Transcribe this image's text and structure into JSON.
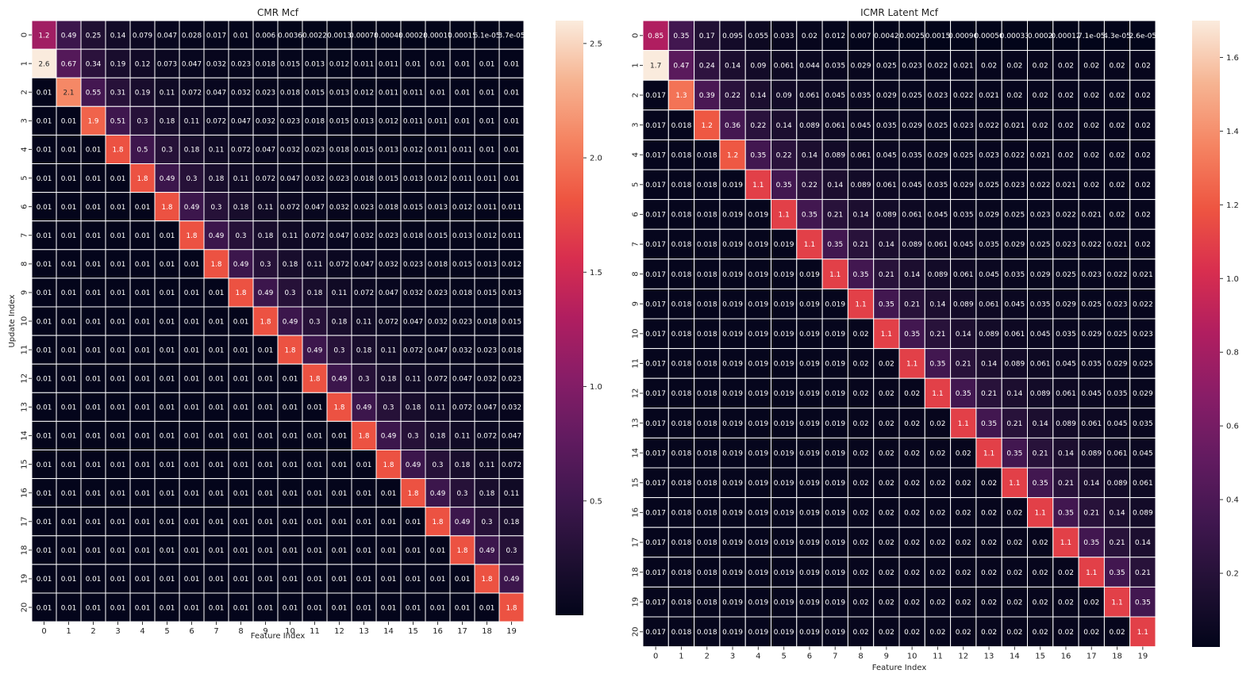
{
  "chart_data": [
    {
      "type": "heatmap",
      "title": "CMR Mcf",
      "xlabel": "Feature Index",
      "ylabel": "Update Index",
      "x_categories": [
        "0",
        "1",
        "2",
        "3",
        "4",
        "5",
        "6",
        "7",
        "8",
        "9",
        "10",
        "11",
        "12",
        "13",
        "14",
        "15",
        "16",
        "17",
        "18",
        "19"
      ],
      "y_categories": [
        "0",
        "1",
        "2",
        "3",
        "4",
        "5",
        "6",
        "7",
        "8",
        "9",
        "10",
        "11",
        "12",
        "13",
        "14",
        "15",
        "16",
        "17",
        "18",
        "19",
        "20"
      ],
      "colorbar": {
        "min": 0,
        "max": 2.6,
        "ticks": [
          "0.5",
          "1.0",
          "1.5",
          "2.0",
          "2.5"
        ]
      },
      "colormap": "rocket",
      "grid_line_color": "#ffffff",
      "values": [
        [
          "1.2",
          "0.49",
          "0.25",
          "0.14",
          "0.079",
          "0.047",
          "0.028",
          "0.017",
          "0.01",
          "0.006",
          "0.0036",
          "0.0022",
          "0.0013",
          "0.00078",
          "0.00048",
          "0.00028",
          "0.00017",
          "0.00015",
          "6.1e-05",
          "3.7e-05"
        ],
        [
          "2.6",
          "0.67",
          "0.34",
          "0.19",
          "0.12",
          "0.073",
          "0.047",
          "0.032",
          "0.023",
          "0.018",
          "0.015",
          "0.013",
          "0.012",
          "0.011",
          "0.011",
          "0.01",
          "0.01",
          "0.01",
          "0.01",
          "0.01"
        ],
        [
          "0.01",
          "2.1",
          "0.55",
          "0.31",
          "0.19",
          "0.11",
          "0.072",
          "0.047",
          "0.032",
          "0.023",
          "0.018",
          "0.015",
          "0.013",
          "0.012",
          "0.011",
          "0.011",
          "0.01",
          "0.01",
          "0.01",
          "0.01"
        ],
        [
          "0.01",
          "0.01",
          "1.9",
          "0.51",
          "0.3",
          "0.18",
          "0.11",
          "0.072",
          "0.047",
          "0.032",
          "0.023",
          "0.018",
          "0.015",
          "0.013",
          "0.012",
          "0.011",
          "0.011",
          "0.01",
          "0.01",
          "0.01"
        ],
        [
          "0.01",
          "0.01",
          "0.01",
          "1.8",
          "0.5",
          "0.3",
          "0.18",
          "0.11",
          "0.072",
          "0.047",
          "0.032",
          "0.023",
          "0.018",
          "0.015",
          "0.013",
          "0.012",
          "0.011",
          "0.011",
          "0.01",
          "0.01"
        ],
        [
          "0.01",
          "0.01",
          "0.01",
          "0.01",
          "1.8",
          "0.49",
          "0.3",
          "0.18",
          "0.11",
          "0.072",
          "0.047",
          "0.032",
          "0.023",
          "0.018",
          "0.015",
          "0.013",
          "0.012",
          "0.011",
          "0.011",
          "0.01"
        ],
        [
          "0.01",
          "0.01",
          "0.01",
          "0.01",
          "0.01",
          "1.8",
          "0.49",
          "0.3",
          "0.18",
          "0.11",
          "0.072",
          "0.047",
          "0.032",
          "0.023",
          "0.018",
          "0.015",
          "0.013",
          "0.012",
          "0.011",
          "0.011"
        ],
        [
          "0.01",
          "0.01",
          "0.01",
          "0.01",
          "0.01",
          "0.01",
          "1.8",
          "0.49",
          "0.3",
          "0.18",
          "0.11",
          "0.072",
          "0.047",
          "0.032",
          "0.023",
          "0.018",
          "0.015",
          "0.013",
          "0.012",
          "0.011"
        ],
        [
          "0.01",
          "0.01",
          "0.01",
          "0.01",
          "0.01",
          "0.01",
          "0.01",
          "1.8",
          "0.49",
          "0.3",
          "0.18",
          "0.11",
          "0.072",
          "0.047",
          "0.032",
          "0.023",
          "0.018",
          "0.015",
          "0.013",
          "0.012"
        ],
        [
          "0.01",
          "0.01",
          "0.01",
          "0.01",
          "0.01",
          "0.01",
          "0.01",
          "0.01",
          "1.8",
          "0.49",
          "0.3",
          "0.18",
          "0.11",
          "0.072",
          "0.047",
          "0.032",
          "0.023",
          "0.018",
          "0.015",
          "0.013"
        ],
        [
          "0.01",
          "0.01",
          "0.01",
          "0.01",
          "0.01",
          "0.01",
          "0.01",
          "0.01",
          "0.01",
          "1.8",
          "0.49",
          "0.3",
          "0.18",
          "0.11",
          "0.072",
          "0.047",
          "0.032",
          "0.023",
          "0.018",
          "0.015"
        ],
        [
          "0.01",
          "0.01",
          "0.01",
          "0.01",
          "0.01",
          "0.01",
          "0.01",
          "0.01",
          "0.01",
          "0.01",
          "1.8",
          "0.49",
          "0.3",
          "0.18",
          "0.11",
          "0.072",
          "0.047",
          "0.032",
          "0.023",
          "0.018"
        ],
        [
          "0.01",
          "0.01",
          "0.01",
          "0.01",
          "0.01",
          "0.01",
          "0.01",
          "0.01",
          "0.01",
          "0.01",
          "0.01",
          "1.8",
          "0.49",
          "0.3",
          "0.18",
          "0.11",
          "0.072",
          "0.047",
          "0.032",
          "0.023"
        ],
        [
          "0.01",
          "0.01",
          "0.01",
          "0.01",
          "0.01",
          "0.01",
          "0.01",
          "0.01",
          "0.01",
          "0.01",
          "0.01",
          "0.01",
          "1.8",
          "0.49",
          "0.3",
          "0.18",
          "0.11",
          "0.072",
          "0.047",
          "0.032"
        ],
        [
          "0.01",
          "0.01",
          "0.01",
          "0.01",
          "0.01",
          "0.01",
          "0.01",
          "0.01",
          "0.01",
          "0.01",
          "0.01",
          "0.01",
          "0.01",
          "1.8",
          "0.49",
          "0.3",
          "0.18",
          "0.11",
          "0.072",
          "0.047"
        ],
        [
          "0.01",
          "0.01",
          "0.01",
          "0.01",
          "0.01",
          "0.01",
          "0.01",
          "0.01",
          "0.01",
          "0.01",
          "0.01",
          "0.01",
          "0.01",
          "0.01",
          "1.8",
          "0.49",
          "0.3",
          "0.18",
          "0.11",
          "0.072"
        ],
        [
          "0.01",
          "0.01",
          "0.01",
          "0.01",
          "0.01",
          "0.01",
          "0.01",
          "0.01",
          "0.01",
          "0.01",
          "0.01",
          "0.01",
          "0.01",
          "0.01",
          "0.01",
          "1.8",
          "0.49",
          "0.3",
          "0.18",
          "0.11"
        ],
        [
          "0.01",
          "0.01",
          "0.01",
          "0.01",
          "0.01",
          "0.01",
          "0.01",
          "0.01",
          "0.01",
          "0.01",
          "0.01",
          "0.01",
          "0.01",
          "0.01",
          "0.01",
          "0.01",
          "1.8",
          "0.49",
          "0.3",
          "0.18"
        ],
        [
          "0.01",
          "0.01",
          "0.01",
          "0.01",
          "0.01",
          "0.01",
          "0.01",
          "0.01",
          "0.01",
          "0.01",
          "0.01",
          "0.01",
          "0.01",
          "0.01",
          "0.01",
          "0.01",
          "0.01",
          "1.8",
          "0.49",
          "0.3"
        ],
        [
          "0.01",
          "0.01",
          "0.01",
          "0.01",
          "0.01",
          "0.01",
          "0.01",
          "0.01",
          "0.01",
          "0.01",
          "0.01",
          "0.01",
          "0.01",
          "0.01",
          "0.01",
          "0.01",
          "0.01",
          "0.01",
          "1.8",
          "0.49"
        ],
        [
          "0.01",
          "0.01",
          "0.01",
          "0.01",
          "0.01",
          "0.01",
          "0.01",
          "0.01",
          "0.01",
          "0.01",
          "0.01",
          "0.01",
          "0.01",
          "0.01",
          "0.01",
          "0.01",
          "0.01",
          "0.01",
          "0.01",
          "1.8"
        ]
      ]
    },
    {
      "type": "heatmap",
      "title": "ICMR Latent Mcf",
      "xlabel": "Feature Index",
      "ylabel": "",
      "x_categories": [
        "0",
        "1",
        "2",
        "3",
        "4",
        "5",
        "6",
        "7",
        "8",
        "9",
        "10",
        "11",
        "12",
        "13",
        "14",
        "15",
        "16",
        "17",
        "18",
        "19"
      ],
      "y_categories": [
        "0",
        "1",
        "2",
        "3",
        "4",
        "5",
        "6",
        "7",
        "8",
        "9",
        "10",
        "11",
        "12",
        "13",
        "14",
        "15",
        "16",
        "17",
        "18",
        "19",
        "20"
      ],
      "colorbar": {
        "min": 0,
        "max": 1.7,
        "ticks": [
          "0.2",
          "0.4",
          "0.6",
          "0.8",
          "1.0",
          "1.2",
          "1.4",
          "1.6"
        ]
      },
      "colormap": "rocket",
      "grid_line_color": "#ffffff",
      "values": [
        [
          "0.85",
          "0.35",
          "0.17",
          "0.095",
          "0.055",
          "0.033",
          "0.02",
          "0.012",
          "0.007",
          "0.0042",
          "0.0025",
          "0.0015",
          "0.00096",
          "0.00056",
          "0.00033",
          "0.0002",
          "0.00012",
          "7.1e-05",
          "4.3e-05",
          "2.6e-05"
        ],
        [
          "1.7",
          "0.47",
          "0.24",
          "0.14",
          "0.09",
          "0.061",
          "0.044",
          "0.035",
          "0.029",
          "0.025",
          "0.023",
          "0.022",
          "0.021",
          "0.02",
          "0.02",
          "0.02",
          "0.02",
          "0.02",
          "0.02",
          "0.02"
        ],
        [
          "0.017",
          "1.3",
          "0.39",
          "0.22",
          "0.14",
          "0.09",
          "0.061",
          "0.045",
          "0.035",
          "0.029",
          "0.025",
          "0.023",
          "0.022",
          "0.021",
          "0.02",
          "0.02",
          "0.02",
          "0.02",
          "0.02",
          "0.02"
        ],
        [
          "0.017",
          "0.018",
          "1.2",
          "0.36",
          "0.22",
          "0.14",
          "0.089",
          "0.061",
          "0.045",
          "0.035",
          "0.029",
          "0.025",
          "0.023",
          "0.022",
          "0.021",
          "0.02",
          "0.02",
          "0.02",
          "0.02",
          "0.02"
        ],
        [
          "0.017",
          "0.018",
          "0.018",
          "1.2",
          "0.35",
          "0.22",
          "0.14",
          "0.089",
          "0.061",
          "0.045",
          "0.035",
          "0.029",
          "0.025",
          "0.023",
          "0.022",
          "0.021",
          "0.02",
          "0.02",
          "0.02",
          "0.02"
        ],
        [
          "0.017",
          "0.018",
          "0.018",
          "0.019",
          "1.1",
          "0.35",
          "0.22",
          "0.14",
          "0.089",
          "0.061",
          "0.045",
          "0.035",
          "0.029",
          "0.025",
          "0.023",
          "0.022",
          "0.021",
          "0.02",
          "0.02",
          "0.02"
        ],
        [
          "0.017",
          "0.018",
          "0.018",
          "0.019",
          "0.019",
          "1.1",
          "0.35",
          "0.21",
          "0.14",
          "0.089",
          "0.061",
          "0.045",
          "0.035",
          "0.029",
          "0.025",
          "0.023",
          "0.022",
          "0.021",
          "0.02",
          "0.02"
        ],
        [
          "0.017",
          "0.018",
          "0.018",
          "0.019",
          "0.019",
          "0.019",
          "1.1",
          "0.35",
          "0.21",
          "0.14",
          "0.089",
          "0.061",
          "0.045",
          "0.035",
          "0.029",
          "0.025",
          "0.023",
          "0.022",
          "0.021",
          "0.02"
        ],
        [
          "0.017",
          "0.018",
          "0.018",
          "0.019",
          "0.019",
          "0.019",
          "0.019",
          "1.1",
          "0.35",
          "0.21",
          "0.14",
          "0.089",
          "0.061",
          "0.045",
          "0.035",
          "0.029",
          "0.025",
          "0.023",
          "0.022",
          "0.021"
        ],
        [
          "0.017",
          "0.018",
          "0.018",
          "0.019",
          "0.019",
          "0.019",
          "0.019",
          "0.019",
          "1.1",
          "0.35",
          "0.21",
          "0.14",
          "0.089",
          "0.061",
          "0.045",
          "0.035",
          "0.029",
          "0.025",
          "0.023",
          "0.022"
        ],
        [
          "0.017",
          "0.018",
          "0.018",
          "0.019",
          "0.019",
          "0.019",
          "0.019",
          "0.019",
          "0.02",
          "1.1",
          "0.35",
          "0.21",
          "0.14",
          "0.089",
          "0.061",
          "0.045",
          "0.035",
          "0.029",
          "0.025",
          "0.023"
        ],
        [
          "0.017",
          "0.018",
          "0.018",
          "0.019",
          "0.019",
          "0.019",
          "0.019",
          "0.019",
          "0.02",
          "0.02",
          "1.1",
          "0.35",
          "0.21",
          "0.14",
          "0.089",
          "0.061",
          "0.045",
          "0.035",
          "0.029",
          "0.025"
        ],
        [
          "0.017",
          "0.018",
          "0.018",
          "0.019",
          "0.019",
          "0.019",
          "0.019",
          "0.019",
          "0.02",
          "0.02",
          "0.02",
          "1.1",
          "0.35",
          "0.21",
          "0.14",
          "0.089",
          "0.061",
          "0.045",
          "0.035",
          "0.029"
        ],
        [
          "0.017",
          "0.018",
          "0.018",
          "0.019",
          "0.019",
          "0.019",
          "0.019",
          "0.019",
          "0.02",
          "0.02",
          "0.02",
          "0.02",
          "1.1",
          "0.35",
          "0.21",
          "0.14",
          "0.089",
          "0.061",
          "0.045",
          "0.035"
        ],
        [
          "0.017",
          "0.018",
          "0.018",
          "0.019",
          "0.019",
          "0.019",
          "0.019",
          "0.019",
          "0.02",
          "0.02",
          "0.02",
          "0.02",
          "0.02",
          "1.1",
          "0.35",
          "0.21",
          "0.14",
          "0.089",
          "0.061",
          "0.045"
        ],
        [
          "0.017",
          "0.018",
          "0.018",
          "0.019",
          "0.019",
          "0.019",
          "0.019",
          "0.019",
          "0.02",
          "0.02",
          "0.02",
          "0.02",
          "0.02",
          "0.02",
          "1.1",
          "0.35",
          "0.21",
          "0.14",
          "0.089",
          "0.061"
        ],
        [
          "0.017",
          "0.018",
          "0.018",
          "0.019",
          "0.019",
          "0.019",
          "0.019",
          "0.019",
          "0.02",
          "0.02",
          "0.02",
          "0.02",
          "0.02",
          "0.02",
          "0.02",
          "1.1",
          "0.35",
          "0.21",
          "0.14",
          "0.089"
        ],
        [
          "0.017",
          "0.018",
          "0.018",
          "0.019",
          "0.019",
          "0.019",
          "0.019",
          "0.019",
          "0.02",
          "0.02",
          "0.02",
          "0.02",
          "0.02",
          "0.02",
          "0.02",
          "0.02",
          "1.1",
          "0.35",
          "0.21",
          "0.14"
        ],
        [
          "0.017",
          "0.018",
          "0.018",
          "0.019",
          "0.019",
          "0.019",
          "0.019",
          "0.019",
          "0.02",
          "0.02",
          "0.02",
          "0.02",
          "0.02",
          "0.02",
          "0.02",
          "0.02",
          "0.02",
          "1.1",
          "0.35",
          "0.21"
        ],
        [
          "0.017",
          "0.018",
          "0.018",
          "0.019",
          "0.019",
          "0.019",
          "0.019",
          "0.019",
          "0.02",
          "0.02",
          "0.02",
          "0.02",
          "0.02",
          "0.02",
          "0.02",
          "0.02",
          "0.02",
          "0.02",
          "1.1",
          "0.35"
        ],
        [
          "0.017",
          "0.018",
          "0.018",
          "0.019",
          "0.019",
          "0.019",
          "0.019",
          "0.019",
          "0.02",
          "0.02",
          "0.02",
          "0.02",
          "0.02",
          "0.02",
          "0.02",
          "0.02",
          "0.02",
          "0.02",
          "0.02",
          "1.1"
        ]
      ]
    }
  ]
}
